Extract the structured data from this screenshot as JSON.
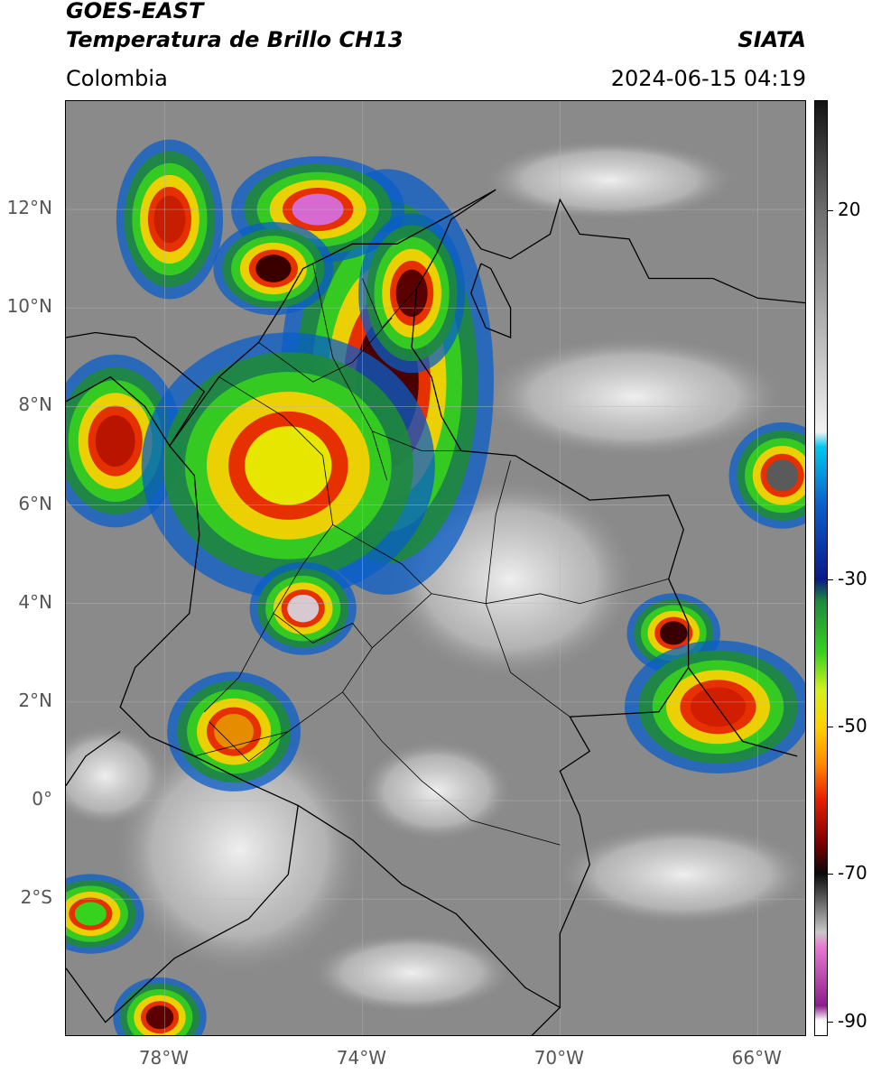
{
  "header": {
    "satellite": "GOES-EAST",
    "product": "Temperatura de Brillo CH13",
    "region": "Colombia",
    "brand": "SIATA",
    "datetime": "2024-06-15 04:19"
  },
  "map": {
    "lon_range": [
      -80,
      -65
    ],
    "lat_range": [
      -4.8,
      14.2
    ],
    "lat_ticks": [
      {
        "value": 12,
        "label": "12°N"
      },
      {
        "value": 10,
        "label": "10°N"
      },
      {
        "value": 8,
        "label": "8°N"
      },
      {
        "value": 6,
        "label": "6°N"
      },
      {
        "value": 4,
        "label": "4°N"
      },
      {
        "value": 2,
        "label": "2°N"
      },
      {
        "value": 0,
        "label": "0°"
      },
      {
        "value": -2,
        "label": "2°S"
      }
    ],
    "lon_ticks": [
      {
        "value": -78,
        "label": "78°W"
      },
      {
        "value": -74,
        "label": "74°W"
      },
      {
        "value": -70,
        "label": "70°W"
      },
      {
        "value": -66,
        "label": "66°W"
      }
    ],
    "grid": true,
    "background_color": "#8a8a8a",
    "border_color": "#000000"
  },
  "colorbar": {
    "range": [
      -92,
      35
    ],
    "ticks": [
      {
        "value": 20,
        "label": "20"
      },
      {
        "value": -30,
        "label": "-30"
      },
      {
        "value": -50,
        "label": "-50"
      },
      {
        "value": -70,
        "label": "-70"
      },
      {
        "value": -90,
        "label": "-90"
      }
    ],
    "stops": [
      {
        "value": 35,
        "color": "#111111"
      },
      {
        "value": 20,
        "color": "#6e6e6e"
      },
      {
        "value": -10,
        "color": "#f2f2f2"
      },
      {
        "value": -12,
        "color": "#00c8f0"
      },
      {
        "value": -20,
        "color": "#0a5ec8"
      },
      {
        "value": -30,
        "color": "#0a1a8a"
      },
      {
        "value": -33,
        "color": "#1e8a3c"
      },
      {
        "value": -40,
        "color": "#37d21e"
      },
      {
        "value": -45,
        "color": "#d2f01e"
      },
      {
        "value": -50,
        "color": "#ffd200"
      },
      {
        "value": -55,
        "color": "#ff8c00"
      },
      {
        "value": -60,
        "color": "#e61e00"
      },
      {
        "value": -66,
        "color": "#7a0000"
      },
      {
        "value": -70,
        "color": "#0a0a0a"
      },
      {
        "value": -78,
        "color": "#c8c8c8"
      },
      {
        "value": -80,
        "color": "#e878d2"
      },
      {
        "value": -88,
        "color": "#8c1e8c"
      },
      {
        "value": -90,
        "color": "#ffffff"
      }
    ]
  },
  "storm_cells": [
    {
      "lon": -73.5,
      "lat": 8.5,
      "rx": 1.6,
      "ry": 3.2,
      "core": "#4a0000"
    },
    {
      "lon": -74.9,
      "lat": 12.0,
      "rx": 1.3,
      "ry": 0.8,
      "core": "#d66ad0"
    },
    {
      "lon": -77.9,
      "lat": 11.8,
      "rx": 0.8,
      "ry": 1.2,
      "core": "#c81e00"
    },
    {
      "lon": -75.8,
      "lat": 10.8,
      "rx": 0.9,
      "ry": 0.7,
      "core": "#3a0000"
    },
    {
      "lon": -73.0,
      "lat": 10.3,
      "rx": 0.8,
      "ry": 1.2,
      "core": "#5a0000"
    },
    {
      "lon": -79.0,
      "lat": 7.3,
      "rx": 1.0,
      "ry": 1.3,
      "core": "#b81400"
    },
    {
      "lon": -75.5,
      "lat": 6.8,
      "rx": 2.2,
      "ry": 2.0,
      "core": "#e6e600"
    },
    {
      "lon": -75.2,
      "lat": 3.9,
      "rx": 0.8,
      "ry": 0.7,
      "core": "#d8c8d0"
    },
    {
      "lon": -76.6,
      "lat": 1.4,
      "rx": 1.0,
      "ry": 0.9,
      "core": "#e68c00"
    },
    {
      "lon": -67.7,
      "lat": 3.4,
      "rx": 0.7,
      "ry": 0.6,
      "core": "#3a0000"
    },
    {
      "lon": -66.8,
      "lat": 1.9,
      "rx": 1.4,
      "ry": 1.0,
      "core": "#d21e00"
    },
    {
      "lon": -65.5,
      "lat": 6.6,
      "rx": 0.8,
      "ry": 0.8,
      "core": "#5a5a5a"
    },
    {
      "lon": -78.1,
      "lat": -4.4,
      "rx": 0.7,
      "ry": 0.6,
      "core": "#5a0000"
    },
    {
      "lon": -79.5,
      "lat": -2.3,
      "rx": 0.8,
      "ry": 0.6,
      "core": "#37d21e"
    }
  ],
  "cloud_patches": [
    {
      "lon": -71.0,
      "lat": 4.5,
      "rx": 2.5,
      "ry": 2.0
    },
    {
      "lon": -76.5,
      "lat": -1.0,
      "rx": 2.5,
      "ry": 2.5
    },
    {
      "lon": -72.5,
      "lat": 0.2,
      "rx": 1.5,
      "ry": 1.0
    },
    {
      "lon": -68.5,
      "lat": 8.2,
      "rx": 3.0,
      "ry": 1.2
    },
    {
      "lon": -79.2,
      "lat": 0.5,
      "rx": 1.2,
      "ry": 1.0
    },
    {
      "lon": -69.0,
      "lat": 12.6,
      "rx": 2.5,
      "ry": 0.8
    },
    {
      "lon": -67.5,
      "lat": -1.5,
      "rx": 2.5,
      "ry": 1.0
    },
    {
      "lon": -73.0,
      "lat": -3.5,
      "rx": 2.0,
      "ry": 0.8
    }
  ],
  "borders": [
    {
      "name": "colombia",
      "points": [
        [
          -71.3,
          12.4
        ],
        [
          -72.2,
          11.8
        ],
        [
          -72.5,
          11.1
        ],
        [
          -72.9,
          10.4
        ],
        [
          -73.0,
          9.2
        ],
        [
          -72.6,
          8.6
        ],
        [
          -72.4,
          7.8
        ],
        [
          -72.0,
          7.1
        ],
        [
          -70.9,
          7.0
        ],
        [
          -69.4,
          6.1
        ],
        [
          -67.8,
          6.2
        ],
        [
          -67.5,
          5.5
        ],
        [
          -67.8,
          4.5
        ],
        [
          -67.4,
          3.6
        ],
        [
          -67.4,
          2.7
        ],
        [
          -68.0,
          1.8
        ],
        [
          -69.8,
          1.7
        ],
        [
          -69.4,
          1.0
        ],
        [
          -70.0,
          0.6
        ],
        [
          -69.6,
          -0.3
        ],
        [
          -69.4,
          -1.3
        ],
        [
          -70.0,
          -2.7
        ],
        [
          -70.0,
          -4.2
        ],
        [
          -70.7,
          -3.8
        ],
        [
          -72.1,
          -2.3
        ],
        [
          -73.2,
          -1.7
        ],
        [
          -74.2,
          -0.8
        ],
        [
          -75.3,
          -0.1
        ],
        [
          -76.4,
          0.4
        ],
        [
          -77.4,
          0.9
        ],
        [
          -78.3,
          1.3
        ],
        [
          -78.9,
          1.9
        ],
        [
          -78.6,
          2.7
        ],
        [
          -77.5,
          3.8
        ],
        [
          -77.3,
          5.4
        ],
        [
          -77.4,
          6.6
        ],
        [
          -77.9,
          7.2
        ],
        [
          -77.4,
          7.9
        ],
        [
          -76.9,
          8.6
        ],
        [
          -76.1,
          9.3
        ],
        [
          -75.6,
          10.1
        ],
        [
          -75.2,
          10.8
        ],
        [
          -74.2,
          11.3
        ],
        [
          -73.3,
          11.3
        ],
        [
          -72.2,
          11.9
        ],
        [
          -71.3,
          12.4
        ]
      ]
    },
    {
      "name": "venezuela-coast",
      "points": [
        [
          -71.9,
          11.6
        ],
        [
          -71.6,
          11.2
        ],
        [
          -71.0,
          11.0
        ],
        [
          -70.2,
          11.5
        ],
        [
          -70.0,
          12.2
        ],
        [
          -69.6,
          11.5
        ],
        [
          -68.6,
          11.4
        ],
        [
          -68.2,
          10.6
        ],
        [
          -66.9,
          10.6
        ],
        [
          -66.0,
          10.2
        ],
        [
          -65.0,
          10.1
        ]
      ]
    },
    {
      "name": "maracaibo-lake",
      "points": [
        [
          -71.6,
          10.9
        ],
        [
          -71.8,
          10.3
        ],
        [
          -71.5,
          9.6
        ],
        [
          -71.0,
          9.4
        ],
        [
          -71.0,
          10.0
        ],
        [
          -71.4,
          10.8
        ],
        [
          -71.6,
          10.9
        ]
      ]
    },
    {
      "name": "central-america",
      "points": [
        [
          -80.0,
          9.4
        ],
        [
          -79.4,
          9.5
        ],
        [
          -78.6,
          9.4
        ],
        [
          -77.8,
          8.8
        ],
        [
          -77.2,
          8.3
        ],
        [
          -77.9,
          7.2
        ],
        [
          -78.4,
          8.0
        ],
        [
          -79.1,
          8.6
        ],
        [
          -80.0,
          8.1
        ]
      ]
    },
    {
      "name": "ecuador-peru",
      "points": [
        [
          -80.0,
          -3.4
        ],
        [
          -79.2,
          -4.5
        ],
        [
          -77.8,
          -3.2
        ],
        [
          -76.3,
          -2.4
        ],
        [
          -75.5,
          -1.5
        ],
        [
          -75.3,
          -0.1
        ]
      ]
    },
    {
      "name": "ecuador-coast",
      "points": [
        [
          -78.9,
          1.4
        ],
        [
          -79.6,
          0.9
        ],
        [
          -80.0,
          0.3
        ]
      ]
    },
    {
      "name": "peru-brazil",
      "points": [
        [
          -70.0,
          -4.2
        ],
        [
          -70.6,
          -4.8
        ]
      ]
    },
    {
      "name": "brazil-venezuela",
      "points": [
        [
          -67.4,
          2.7
        ],
        [
          -66.3,
          1.2
        ],
        [
          -65.2,
          0.9
        ]
      ]
    }
  ],
  "internal_lines": [
    [
      [
        -75.0,
        10.9
      ],
      [
        -74.6,
        9.0
      ],
      [
        -73.8,
        7.5
      ],
      [
        -73.5,
        6.5
      ]
    ],
    [
      [
        -76.9,
        8.6
      ],
      [
        -75.6,
        7.8
      ],
      [
        -74.8,
        7.0
      ],
      [
        -74.6,
        5.6
      ],
      [
        -75.2,
        4.8
      ],
      [
        -75.8,
        3.8
      ],
      [
        -76.5,
        2.5
      ],
      [
        -77.2,
        1.8
      ]
    ],
    [
      [
        -74.6,
        5.6
      ],
      [
        -73.2,
        4.8
      ],
      [
        -72.6,
        4.2
      ],
      [
        -71.5,
        4.0
      ],
      [
        -70.4,
        4.2
      ],
      [
        -69.6,
        4.0
      ],
      [
        -67.8,
        4.5
      ]
    ],
    [
      [
        -72.6,
        4.2
      ],
      [
        -73.8,
        3.1
      ],
      [
        -74.4,
        2.2
      ],
      [
        -75.5,
        1.4
      ],
      [
        -77.4,
        0.9
      ]
    ],
    [
      [
        -71.5,
        4.0
      ],
      [
        -71.0,
        2.6
      ],
      [
        -70.2,
        2.0
      ],
      [
        -69.8,
        1.7
      ]
    ],
    [
      [
        -74.4,
        2.2
      ],
      [
        -73.6,
        1.2
      ],
      [
        -72.8,
        0.4
      ],
      [
        -71.8,
        -0.4
      ],
      [
        -70.0,
        -0.9
      ]
    ],
    [
      [
        -73.8,
        7.5
      ],
      [
        -72.8,
        7.1
      ],
      [
        -72.0,
        7.1
      ]
    ],
    [
      [
        -71.0,
        6.9
      ],
      [
        -71.3,
        5.8
      ],
      [
        -71.5,
        4.0
      ]
    ],
    [
      [
        -76.1,
        9.3
      ],
      [
        -75.0,
        8.5
      ],
      [
        -74.2,
        8.9
      ],
      [
        -73.4,
        9.8
      ]
    ],
    [
      [
        -75.8,
        3.8
      ],
      [
        -75.0,
        3.2
      ],
      [
        -74.2,
        3.6
      ],
      [
        -73.8,
        3.1
      ]
    ],
    [
      [
        -75.5,
        1.4
      ],
      [
        -76.3,
        0.8
      ],
      [
        -77.1,
        1.6
      ]
    ],
    [
      [
        -72.9,
        10.4
      ],
      [
        -73.6,
        9.6
      ],
      [
        -74.0,
        10.6
      ]
    ]
  ]
}
